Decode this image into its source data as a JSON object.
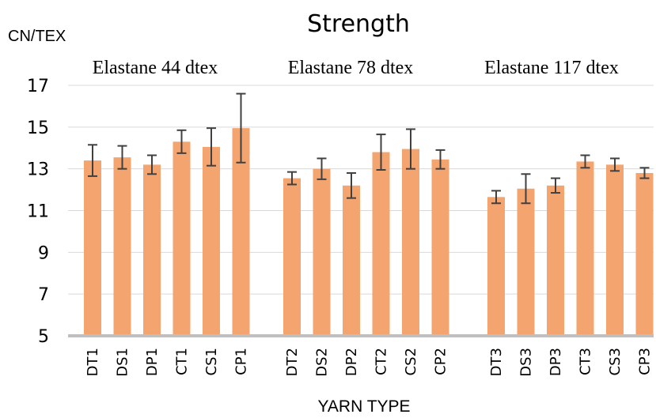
{
  "chart_data": {
    "type": "bar",
    "title": "Strength",
    "ylabel": "CN/TEX",
    "xlabel": "YARN TYPE",
    "ylim": [
      5,
      17
    ],
    "yticks": [
      5,
      7,
      9,
      11,
      13,
      15,
      17
    ],
    "grid": true,
    "colors": {
      "bar": "#F4A46E",
      "error": "#404040",
      "grid": "#D9D9D9",
      "axis": "#BFBFBF"
    },
    "groups": [
      {
        "label": "Elastane 44 dtex",
        "categories": [
          "DT1",
          "DS1",
          "DP1",
          "CT1",
          "CS1",
          "CP1"
        ],
        "values": [
          13.4,
          13.55,
          13.2,
          14.3,
          14.05,
          14.95
        ],
        "errors": [
          0.75,
          0.55,
          0.45,
          0.55,
          0.9,
          1.65
        ]
      },
      {
        "label": "Elastane 78 dtex",
        "categories": [
          "DT2",
          "DS2",
          "DP2",
          "CT2",
          "CS2",
          "CP2"
        ],
        "values": [
          12.55,
          13.0,
          12.2,
          13.8,
          13.95,
          13.45
        ],
        "errors": [
          0.3,
          0.5,
          0.6,
          0.85,
          0.95,
          0.45
        ]
      },
      {
        "label": "Elastane 117 dtex",
        "categories": [
          "DT3",
          "DS3",
          "DP3",
          "CT3",
          "CS3",
          "CP3"
        ],
        "values": [
          11.65,
          12.05,
          12.2,
          13.35,
          13.2,
          12.8
        ],
        "errors": [
          0.3,
          0.7,
          0.35,
          0.3,
          0.3,
          0.25
        ]
      }
    ]
  }
}
